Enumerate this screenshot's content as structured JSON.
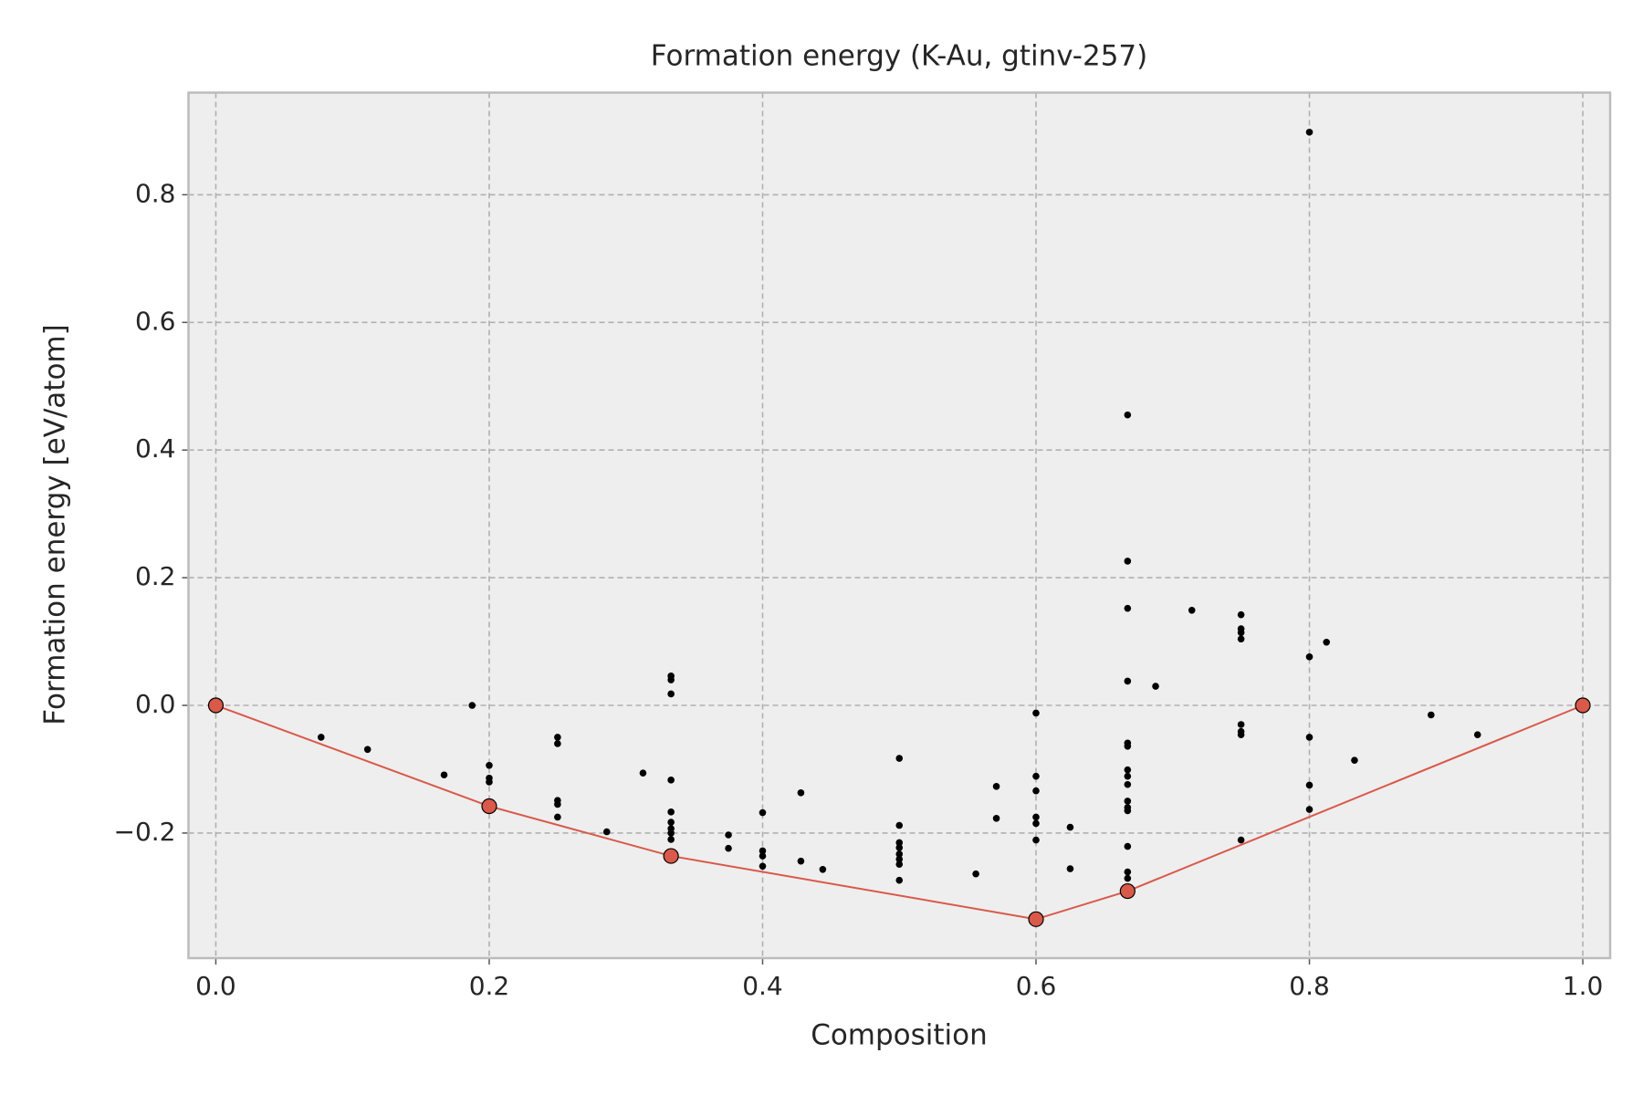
{
  "chart_data": {
    "type": "scatter",
    "title": "Formation energy (K-Au, gtinv-257)",
    "x_label": "Composition",
    "y_label": "Formation energy [eV/atom]",
    "xlim": [
      -0.02,
      1.02
    ],
    "ylim": [
      -0.396,
      0.96
    ],
    "xticks": [
      {
        "value": 0,
        "label": "0.0"
      },
      0.2,
      0.4,
      0.6,
      0.8,
      {
        "value": 1,
        "label": "1.0"
      }
    ],
    "yticks": [
      {
        "value": -0.2,
        "label": "−0.2"
      },
      {
        "value": 0,
        "label": "0.0"
      },
      0.2,
      0.4,
      0.6,
      0.8
    ],
    "grid": true,
    "series": [
      {
        "type": "scatter",
        "color": "#000000",
        "x": [
          0.077,
          0.111,
          0.167,
          0.1875,
          0.2,
          0.2,
          0.2,
          0.25,
          0.25,
          0.25,
          0.25,
          0.25,
          0.286,
          0.3125,
          0.333,
          0.333,
          0.333,
          0.333,
          0.333,
          0.333,
          0.333,
          0.333,
          0.333,
          0.375,
          0.375,
          0.4,
          0.4,
          0.4,
          0.4,
          0.428,
          0.428,
          0.444,
          0.5,
          0.5,
          0.5,
          0.5,
          0.5,
          0.5,
          0.5,
          0.5,
          0.556,
          0.571,
          0.571,
          0.6,
          0.6,
          0.6,
          0.6,
          0.6,
          0.6,
          0.625,
          0.625,
          0.667,
          0.667,
          0.667,
          0.667,
          0.667,
          0.667,
          0.667,
          0.667,
          0.667,
          0.667,
          0.667,
          0.667,
          0.667,
          0.667,
          0.667,
          0.6875,
          0.714,
          0.75,
          0.75,
          0.75,
          0.75,
          0.75,
          0.75,
          0.75,
          0.75,
          0.8,
          0.8,
          0.8,
          0.8,
          0.8,
          0.8125,
          0.833,
          0.889,
          0.923
        ],
        "values": [
          -0.05,
          -0.069,
          -0.109,
          0.0,
          -0.094,
          -0.114,
          -0.12,
          -0.05,
          -0.06,
          -0.149,
          -0.155,
          -0.175,
          -0.198,
          -0.106,
          0.046,
          0.04,
          0.018,
          -0.117,
          -0.167,
          -0.183,
          -0.193,
          -0.2,
          -0.21,
          -0.203,
          -0.224,
          -0.168,
          -0.228,
          -0.236,
          -0.252,
          -0.137,
          -0.244,
          -0.257,
          -0.083,
          -0.188,
          -0.215,
          -0.223,
          -0.233,
          -0.241,
          -0.249,
          -0.274,
          -0.264,
          -0.127,
          -0.177,
          -0.012,
          -0.111,
          -0.134,
          -0.175,
          -0.185,
          -0.211,
          -0.191,
          -0.256,
          0.455,
          0.226,
          0.152,
          0.038,
          -0.059,
          -0.064,
          -0.101,
          -0.111,
          -0.124,
          -0.15,
          -0.16,
          -0.165,
          -0.221,
          -0.261,
          -0.271,
          0.03,
          0.149,
          0.142,
          0.12,
          0.114,
          0.104,
          -0.03,
          -0.041,
          -0.046,
          -0.211,
          0.898,
          0.076,
          -0.05,
          -0.125,
          -0.163,
          0.099,
          -0.086,
          -0.015,
          -0.046
        ]
      },
      {
        "type": "line",
        "color": "#d9594a",
        "x": [
          0,
          0.2,
          0.333,
          0.6,
          0.667,
          1
        ],
        "values": [
          0,
          -0.158,
          -0.236,
          -0.335,
          -0.291,
          0
        ]
      }
    ]
  }
}
